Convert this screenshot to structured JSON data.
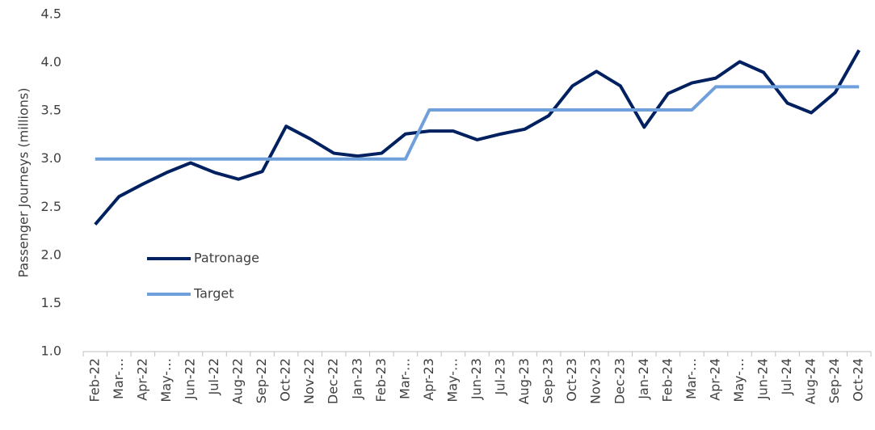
{
  "chart_data": {
    "type": "line",
    "y_label": "Passenger Journeys (millions)",
    "categories": [
      "Feb-22",
      "Mar-…",
      "Apr-22",
      "May-…",
      "Jun-22",
      "Jul-22",
      "Aug-22",
      "Sep-22",
      "Oct-22",
      "Nov-22",
      "Dec-22",
      "Jan-23",
      "Feb-23",
      "Mar-…",
      "Apr-23",
      "May-…",
      "Jun-23",
      "Jul-23",
      "Aug-23",
      "Sep-23",
      "Oct-23",
      "Nov-23",
      "Dec-23",
      "Jan-24",
      "Feb-24",
      "Mar-…",
      "Apr-24",
      "May-…",
      "Jun-24",
      "Jul-24",
      "Aug-24",
      "Sep-24",
      "Oct-24"
    ],
    "series": [
      {
        "name": "Patronage",
        "color": "#002060",
        "values": [
          2.32,
          2.61,
          2.74,
          2.86,
          2.96,
          2.86,
          2.79,
          2.87,
          3.34,
          3.21,
          3.06,
          3.03,
          3.06,
          3.26,
          3.29,
          3.29,
          3.2,
          3.26,
          3.31,
          3.45,
          3.76,
          3.91,
          3.76,
          3.33,
          3.68,
          3.79,
          3.84,
          4.01,
          3.9,
          3.58,
          3.48,
          3.69,
          4.13
        ]
      },
      {
        "name": "Target",
        "color": "#6fa0dc",
        "values": [
          3.0,
          3.0,
          3.0,
          3.0,
          3.0,
          3.0,
          3.0,
          3.0,
          3.0,
          3.0,
          3.0,
          3.0,
          3.0,
          3.0,
          3.51,
          3.51,
          3.51,
          3.51,
          3.51,
          3.51,
          3.51,
          3.51,
          3.51,
          3.51,
          3.51,
          3.51,
          3.75,
          3.75,
          3.75,
          3.75,
          3.75,
          3.75,
          3.75
        ]
      }
    ],
    "ylim": [
      1.0,
      4.5
    ],
    "yticks": [
      {
        "value": 1,
        "label": "1.0"
      },
      1.5,
      {
        "value": 2,
        "label": "2.0"
      },
      2.5,
      {
        "value": 3,
        "label": "3.0"
      },
      3.5,
      {
        "value": 4,
        "label": "4.0"
      },
      4.5
    ],
    "grid": false,
    "legend": "center-left"
  }
}
